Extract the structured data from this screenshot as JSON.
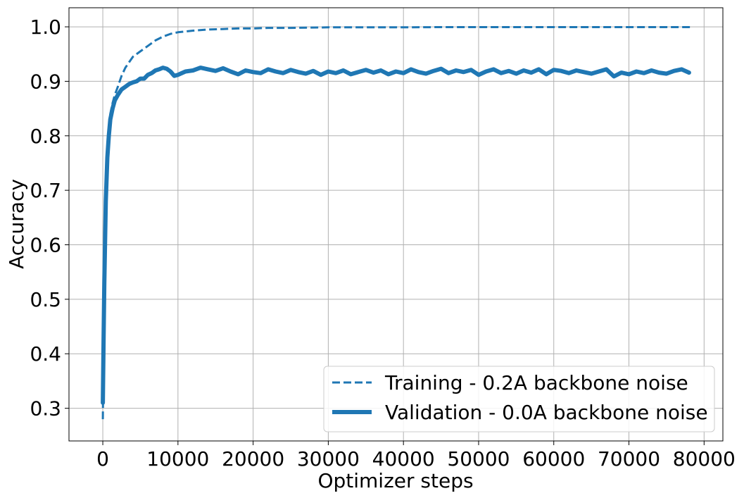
{
  "colors": {
    "series": "#1f77b4",
    "grid": "#b0b0b0",
    "axes": "#000000",
    "legend_border": "#cccccc"
  },
  "chart_data": {
    "type": "line",
    "title": "",
    "xlabel": "Optimizer steps",
    "ylabel": "Accuracy",
    "xlim": [
      -4500,
      82500
    ],
    "ylim": [
      0.24,
      1.035
    ],
    "grid": true,
    "legend_position": "lower-right",
    "xticks": [
      0,
      10000,
      20000,
      30000,
      40000,
      50000,
      60000,
      70000,
      80000
    ],
    "xtick_labels": [
      "0",
      "10000",
      "20000",
      "30000",
      "40000",
      "50000",
      "60000",
      "70000",
      "80000"
    ],
    "yticks": [
      0.3,
      0.4,
      0.5,
      0.6,
      0.7,
      0.8,
      0.9,
      1.0
    ],
    "ytick_labels": [
      "0.3",
      "0.4",
      "0.5",
      "0.6",
      "0.7",
      "0.8",
      "0.9",
      "1.0"
    ],
    "series": [
      {
        "name": "Training - 0.2A backbone noise",
        "style": "dashed",
        "x": [
          0,
          100,
          200,
          400,
          600,
          800,
          1000,
          1300,
          1600,
          2000,
          2500,
          3000,
          3500,
          4000,
          5000,
          6000,
          7000,
          8000,
          9000,
          10000,
          12000,
          14000,
          16000,
          18000,
          20000,
          22000,
          25000,
          30000,
          35000,
          40000,
          45000,
          50000,
          55000,
          60000,
          65000,
          70000,
          75000,
          78300
        ],
        "y": [
          0.28,
          0.42,
          0.56,
          0.7,
          0.77,
          0.81,
          0.84,
          0.86,
          0.875,
          0.89,
          0.91,
          0.925,
          0.935,
          0.945,
          0.955,
          0.965,
          0.975,
          0.982,
          0.987,
          0.99,
          0.993,
          0.995,
          0.996,
          0.997,
          0.997,
          0.998,
          0.998,
          0.999,
          0.999,
          0.999,
          0.9995,
          0.9995,
          0.9995,
          0.9995,
          0.9995,
          0.9995,
          0.9995,
          0.9995
        ]
      },
      {
        "name": "Validation - 0.0A backbone noise",
        "style": "solid",
        "x": [
          0,
          100,
          200,
          400,
          600,
          800,
          1000,
          1300,
          1600,
          2000,
          2500,
          3000,
          3500,
          4000,
          4500,
          5000,
          5500,
          6000,
          6500,
          7000,
          7500,
          8000,
          8500,
          9000,
          9500,
          10000,
          11000,
          12000,
          13000,
          14000,
          15000,
          16000,
          17000,
          18000,
          19000,
          20000,
          21000,
          22000,
          23000,
          24000,
          25000,
          26000,
          27000,
          28000,
          29000,
          30000,
          31000,
          32000,
          33000,
          34000,
          35000,
          36000,
          37000,
          38000,
          39000,
          40000,
          41000,
          42000,
          43000,
          44000,
          45000,
          46000,
          47000,
          48000,
          49000,
          50000,
          51000,
          52000,
          53000,
          54000,
          55000,
          56000,
          57000,
          58000,
          59000,
          60000,
          61000,
          62000,
          63000,
          64000,
          65000,
          66000,
          67000,
          68000,
          69000,
          70000,
          71000,
          72000,
          73000,
          74000,
          75000,
          76000,
          77000,
          78000
        ],
        "y": [
          0.31,
          0.42,
          0.53,
          0.68,
          0.76,
          0.8,
          0.83,
          0.85,
          0.865,
          0.875,
          0.885,
          0.89,
          0.895,
          0.898,
          0.9,
          0.905,
          0.905,
          0.912,
          0.915,
          0.92,
          0.922,
          0.925,
          0.923,
          0.918,
          0.91,
          0.912,
          0.918,
          0.92,
          0.925,
          0.922,
          0.919,
          0.924,
          0.918,
          0.913,
          0.92,
          0.917,
          0.915,
          0.922,
          0.918,
          0.915,
          0.921,
          0.917,
          0.914,
          0.919,
          0.912,
          0.918,
          0.915,
          0.92,
          0.913,
          0.917,
          0.921,
          0.916,
          0.92,
          0.913,
          0.918,
          0.915,
          0.922,
          0.917,
          0.914,
          0.919,
          0.923,
          0.915,
          0.92,
          0.917,
          0.921,
          0.912,
          0.918,
          0.922,
          0.915,
          0.919,
          0.914,
          0.92,
          0.916,
          0.922,
          0.913,
          0.921,
          0.919,
          0.915,
          0.92,
          0.917,
          0.914,
          0.918,
          0.922,
          0.909,
          0.916,
          0.913,
          0.918,
          0.915,
          0.92,
          0.916,
          0.914,
          0.919,
          0.922,
          0.916
        ]
      }
    ]
  }
}
